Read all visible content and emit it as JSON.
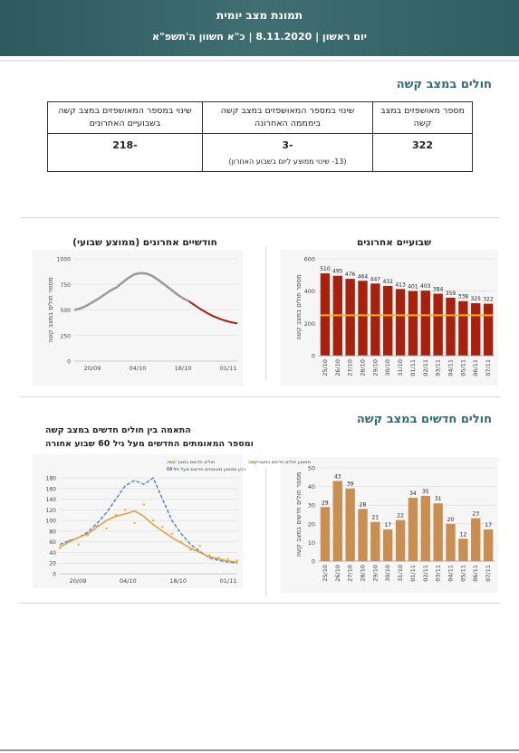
{
  "header": {
    "title": "תמונת מצב יומית",
    "date_line": "יום ראשון | 8.11.2020 | כ\"א חשוון ה'תשפ\"א"
  },
  "severe": {
    "section_title": "חולים במצב קשה",
    "kpi": {
      "col1_label": "מספר מאושפזים במצב קשה",
      "col1_value": "322",
      "col2_label": "שינוי במספר המאושפזים במצב קשה בימממה האחרונה",
      "col2_value": "-3",
      "col2_note": "(13- שינוי ממוצע ליום בשבוע האחרון)",
      "col3_label": "שינוי במספר המאושפזים במצב קשה בשבועיים האחרונים",
      "col3_value": "-218"
    },
    "two_weeks_title": "שבועיים אחרונים",
    "two_months_title": "חודשיים אחרונים (ממוצע שבועי)"
  },
  "new_severe": {
    "section_title": "חולים חדשים במצב קשה",
    "corr_title_line1": "התאמה בין חולים חדשים במצב קשה",
    "corr_title_line2": "ומספר המאומתים החדשים מעל גיל 60 שבוע אחורה"
  },
  "colors": {
    "dark_red": "#a8200e",
    "gold": "#f2b21b",
    "tan": "#c98e52",
    "gray_line": "#9a9a9a",
    "orange": "#e4a040",
    "blue_dash": "#4a82d0"
  },
  "chart_data": [
    {
      "type": "bar",
      "title": "שבועיים אחרונים",
      "ylabel": "מספר חולים במצב קשה",
      "ylim": [
        0,
        600
      ],
      "yticks": [
        0,
        200,
        400,
        600
      ],
      "categories": [
        "25/10",
        "26/10",
        "27/10",
        "28/10",
        "29/10",
        "30/10",
        "31/10",
        "01/11",
        "02/11",
        "03/11",
        "04/11",
        "05/11",
        "06/11",
        "07/11"
      ],
      "values": [
        510,
        495,
        476,
        464,
        447,
        432,
        413,
        401,
        403,
        384,
        359,
        338,
        325,
        322
      ],
      "reference_line": 250,
      "grid": true
    },
    {
      "type": "line",
      "title": "חודשיים אחרונים (ממוצע שבועי)",
      "ylabel": "מספר חולים במצב קשה",
      "ylim": [
        0,
        1000
      ],
      "yticks": [
        0,
        250,
        500,
        750,
        1000
      ],
      "xticks": [
        "20/09",
        "04/10",
        "18/10",
        "01/11"
      ],
      "series": [
        {
          "values": [
            500,
            515,
            540,
            575,
            610,
            650,
            690,
            720,
            770,
            815,
            850,
            860,
            855,
            830,
            790,
            745,
            700,
            655,
            615,
            585
          ]
        },
        {
          "values": [
            585,
            545,
            505,
            470,
            440,
            415,
            395,
            380,
            368
          ]
        }
      ],
      "grid": true
    },
    {
      "type": "bar",
      "ylabel": "מספר חולים חדשים במצב קשה",
      "ylim": [
        0,
        50
      ],
      "yticks": [
        0,
        10,
        20,
        30,
        40,
        50
      ],
      "categories": [
        "25/10",
        "26/10",
        "27/10",
        "28/10",
        "29/10",
        "30/10",
        "31/10",
        "01/11",
        "02/11",
        "03/11",
        "04/11",
        "05/11",
        "06/11",
        "07/11"
      ],
      "values": [
        29,
        43,
        39,
        28,
        21,
        17,
        22,
        34,
        35,
        31,
        20,
        12,
        23,
        17
      ],
      "grid": true
    },
    {
      "type": "line",
      "ylim": [
        0,
        180
      ],
      "yticks": [
        0,
        20,
        40,
        60,
        80,
        100,
        120,
        140,
        160,
        180
      ],
      "xticks": [
        "20/09",
        "04/10",
        "18/10",
        "01/11"
      ],
      "legend": [
        "ממוצע חולים חדשים במצב קשה",
        "חולים חדשים במצב קשה",
        "רבע ממוצע מאומתים חדשים מעל גיל 60"
      ],
      "series": [
        {
          "name": "ממוצע חולים חדשים במצב קשה",
          "values": [
            50,
            60,
            68,
            75,
            88,
            100,
            108,
            112,
            118,
            108,
            92,
            80,
            68,
            58,
            48,
            40,
            32,
            28,
            24,
            22
          ]
        },
        {
          "name": "רבע ממוצע מאומתים חדשים מעל גיל 60",
          "values": [
            55,
            62,
            68,
            78,
            95,
            115,
            140,
            165,
            175,
            168,
            180,
            140,
            100,
            75,
            55,
            42,
            30,
            25,
            22,
            20
          ]
        },
        {
          "name": "חולים חדשים במצב קשה",
          "values": [
            48,
            62,
            55,
            72,
            90,
            85,
            110,
            120,
            95,
            130,
            100,
            88,
            75,
            60,
            45,
            52,
            35,
            30,
            28,
            25
          ]
        }
      ]
    }
  ]
}
